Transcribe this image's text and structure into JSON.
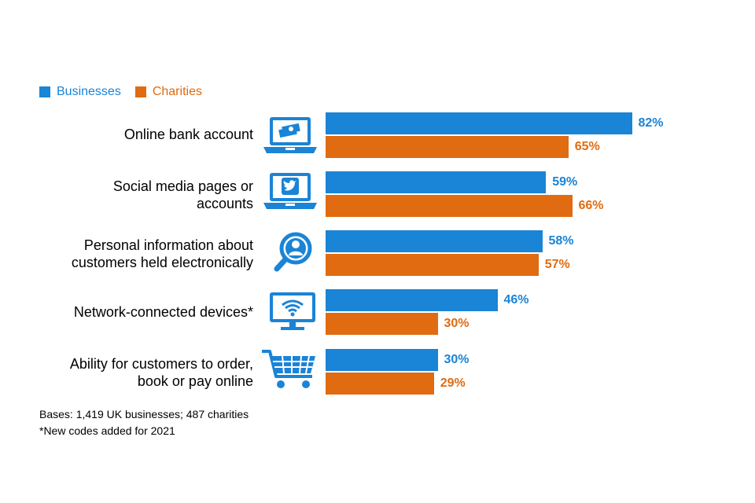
{
  "chart_data": {
    "type": "bar",
    "orientation": "horizontal",
    "categories": [
      "Online bank account",
      "Social media pages or accounts",
      "Personal information about customers held electronically",
      "Network-connected devices*",
      "Ability for customers to order, book or pay online"
    ],
    "category_lines": [
      [
        "Online bank account"
      ],
      [
        "Social media pages or",
        "accounts"
      ],
      [
        "Personal information about",
        "customers held electronically"
      ],
      [
        "Network-connected devices*"
      ],
      [
        "Ability for customers to order,",
        "book or pay online"
      ]
    ],
    "series": [
      {
        "name": "Businesses",
        "color": "#1a84d6",
        "values": [
          82,
          59,
          58,
          46,
          30
        ]
      },
      {
        "name": "Charities",
        "color": "#e06b10",
        "values": [
          65,
          66,
          57,
          30,
          29
        ]
      }
    ],
    "value_suffix": "%",
    "xlim": [
      0,
      100
    ],
    "legend_position": "top-left",
    "title": "",
    "xlabel": "",
    "ylabel": ""
  },
  "icons": [
    "laptop-money-icon",
    "laptop-twitter-icon",
    "magnifier-person-icon",
    "monitor-wifi-icon",
    "shopping-cart-icon"
  ],
  "footnotes": {
    "bases": "Bases: 1,419 UK businesses; 487 charities",
    "new_codes": "*New codes added for 2021"
  }
}
